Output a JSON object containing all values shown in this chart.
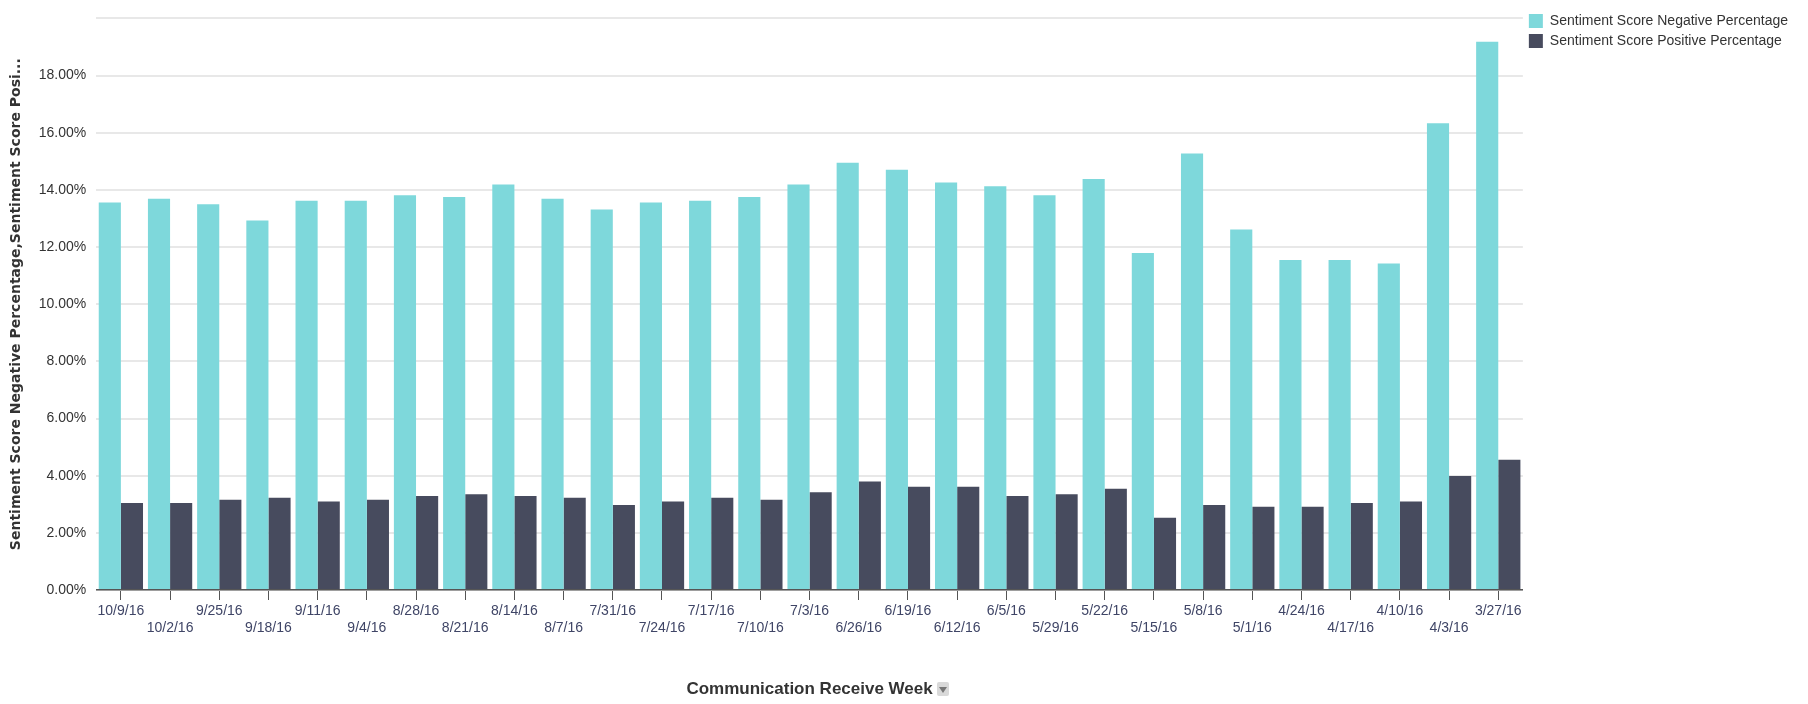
{
  "chart_data": {
    "type": "bar",
    "xlabel": "Communication Receive Week",
    "ylabel": "Sentiment Score Negative Percentage,Sentiment Score Posi...",
    "categories": [
      "10/9/16",
      "10/2/16",
      "9/25/16",
      "9/18/16",
      "9/11/16",
      "9/4/16",
      "8/28/16",
      "8/21/16",
      "8/14/16",
      "8/7/16",
      "7/31/16",
      "7/24/16",
      "7/17/16",
      "7/10/16",
      "7/3/16",
      "6/26/16",
      "6/19/16",
      "6/12/16",
      "6/5/16",
      "5/29/16",
      "5/22/16",
      "5/15/16",
      "5/8/16",
      "5/1/16",
      "4/24/16",
      "4/17/16",
      "4/10/16",
      "4/3/16",
      "3/27/16"
    ],
    "series": [
      {
        "name": "Sentiment Score Negative Percentage",
        "color": "#7ed8db",
        "values": [
          13.56,
          13.69,
          13.5,
          12.93,
          13.62,
          13.62,
          13.81,
          13.75,
          14.19,
          13.69,
          13.31,
          13.56,
          13.62,
          13.75,
          14.19,
          14.95,
          14.7,
          14.26,
          14.13,
          13.81,
          14.38,
          11.79,
          15.27,
          12.61,
          11.55,
          11.55,
          11.42,
          16.33,
          19.18
        ]
      },
      {
        "name": "Sentiment Score Positive Percentage",
        "color": "#474b5e",
        "values": [
          3.04,
          3.04,
          3.16,
          3.23,
          3.1,
          3.16,
          3.29,
          3.35,
          3.29,
          3.23,
          2.97,
          3.1,
          3.23,
          3.16,
          3.42,
          3.8,
          3.61,
          3.61,
          3.29,
          3.35,
          3.54,
          2.53,
          2.97,
          2.91,
          2.91,
          3.04,
          3.1,
          3.99,
          4.56
        ]
      }
    ],
    "ylim": [
      0,
      20
    ],
    "yticks": [
      {
        "value": 0,
        "label": "0.00%"
      },
      {
        "value": 2,
        "label": "2.00%"
      },
      {
        "value": 4,
        "label": "4.00%"
      },
      {
        "value": 6,
        "label": "6.00%"
      },
      {
        "value": 8,
        "label": "8.00%"
      },
      {
        "value": 10,
        "label": "10.00%"
      },
      {
        "value": 12,
        "label": "12.00%"
      },
      {
        "value": 14,
        "label": "14.00%"
      },
      {
        "value": 16,
        "label": "16.00%"
      },
      {
        "value": 18,
        "label": "18.00%"
      },
      {
        "value": 20,
        "label": null
      }
    ],
    "grid": "y",
    "legend": "top right"
  }
}
